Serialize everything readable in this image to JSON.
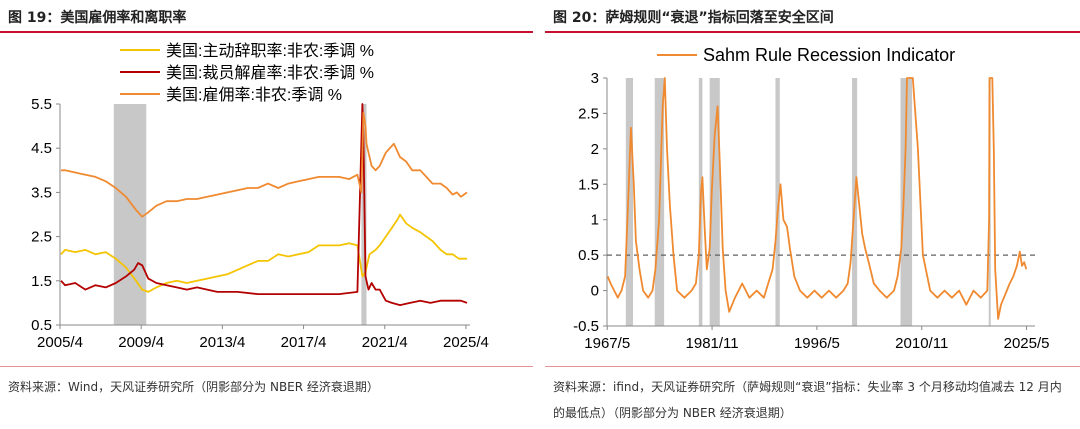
{
  "left": {
    "title": "图 19：美国雇佣率和离职率",
    "source": "资料来源：Wind，天风证券研究所（阴影部分为 NBER 经济衰退期）"
  },
  "right": {
    "title": "图 20：萨姆规则“衰退”指标回落至安全区间",
    "source": "资料来源：ifind，天风证券研究所（萨姆规则“衰退”指标：失业率 3 个月移动均值减去 12 月内的最低点）（阴影部分为 NBER 经济衰退期）"
  },
  "chart_data": [
    {
      "type": "line",
      "ylim": [
        0.5,
        5.5
      ],
      "yticks": [
        "5.5",
        "4.5",
        "3.5",
        "2.5",
        "1.5",
        "0.5"
      ],
      "xticks": [
        "2005/4",
        "2009/4",
        "2013/4",
        "2017/4",
        "2021/4",
        "2025/4"
      ],
      "legend_position": "top",
      "shading": [
        [
          2007.9,
          2009.5
        ],
        [
          2020.1,
          2020.35
        ]
      ],
      "series": [
        {
          "name": "美国:主动辞职率:非农:季调 %",
          "color": "#f5c400",
          "x": [
            2005.3,
            2005.5,
            2006.0,
            2006.5,
            2007.0,
            2007.5,
            2008.0,
            2008.5,
            2009.0,
            2009.3,
            2009.6,
            2010.0,
            2010.5,
            2011.0,
            2011.5,
            2012.0,
            2012.5,
            2013.0,
            2013.5,
            2014.0,
            2014.5,
            2015.0,
            2015.5,
            2016.0,
            2016.5,
            2017.0,
            2017.5,
            2018.0,
            2018.5,
            2019.0,
            2019.5,
            2019.9,
            2020.15,
            2020.3,
            2020.5,
            2020.8,
            2021.0,
            2021.3,
            2021.6,
            2021.9,
            2022.0,
            2022.3,
            2022.6,
            2023.0,
            2023.3,
            2023.6,
            2024.0,
            2024.3,
            2024.6,
            2024.9,
            2025.1,
            2025.3
          ],
          "y": [
            2.1,
            2.2,
            2.15,
            2.2,
            2.1,
            2.15,
            2.0,
            1.8,
            1.5,
            1.3,
            1.25,
            1.35,
            1.45,
            1.5,
            1.45,
            1.5,
            1.55,
            1.6,
            1.65,
            1.75,
            1.85,
            1.95,
            1.95,
            2.1,
            2.05,
            2.1,
            2.15,
            2.3,
            2.3,
            2.3,
            2.35,
            2.3,
            1.6,
            1.7,
            2.1,
            2.2,
            2.3,
            2.5,
            2.7,
            2.9,
            3.0,
            2.8,
            2.7,
            2.6,
            2.5,
            2.4,
            2.2,
            2.1,
            2.1,
            2.0,
            2.0,
            2.0
          ]
        },
        {
          "name": "美国:裁员解雇率:非农:季调 %",
          "color": "#b40000",
          "x": [
            2005.3,
            2005.5,
            2006.0,
            2006.5,
            2007.0,
            2007.5,
            2008.0,
            2008.5,
            2008.9,
            2009.1,
            2009.3,
            2009.6,
            2010.0,
            2010.5,
            2011.0,
            2011.5,
            2012.0,
            2013.0,
            2014.0,
            2015.0,
            2016.0,
            2017.0,
            2018.0,
            2019.0,
            2019.9,
            2020.15,
            2020.2,
            2020.3,
            2020.45,
            2020.6,
            2020.8,
            2021.0,
            2021.3,
            2021.6,
            2022.0,
            2022.5,
            2023.0,
            2023.5,
            2024.0,
            2024.5,
            2025.0,
            2025.3
          ],
          "y": [
            1.5,
            1.4,
            1.45,
            1.3,
            1.4,
            1.35,
            1.45,
            1.6,
            1.75,
            1.9,
            1.85,
            1.55,
            1.45,
            1.4,
            1.35,
            1.3,
            1.35,
            1.25,
            1.25,
            1.2,
            1.2,
            1.2,
            1.2,
            1.2,
            1.25,
            5.5,
            4.8,
            1.6,
            1.3,
            1.45,
            1.3,
            1.3,
            1.05,
            1.0,
            0.95,
            1.0,
            1.05,
            1.0,
            1.05,
            1.05,
            1.05,
            1.0
          ]
        },
        {
          "name": "美国:雇佣率:非农:季调 %",
          "color": "#f08a30",
          "x": [
            2005.3,
            2005.5,
            2006.0,
            2006.5,
            2007.0,
            2007.5,
            2008.0,
            2008.5,
            2009.0,
            2009.3,
            2009.6,
            2010.0,
            2010.5,
            2011.0,
            2011.5,
            2012.0,
            2012.5,
            2013.0,
            2013.5,
            2014.0,
            2014.5,
            2015.0,
            2015.5,
            2016.0,
            2016.5,
            2017.0,
            2017.5,
            2018.0,
            2018.5,
            2019.0,
            2019.5,
            2019.9,
            2020.1,
            2020.2,
            2020.3,
            2020.35,
            2020.45,
            2020.6,
            2020.8,
            2021.0,
            2021.3,
            2021.5,
            2021.7,
            2022.0,
            2022.3,
            2022.6,
            2023.0,
            2023.3,
            2023.6,
            2024.0,
            2024.3,
            2024.6,
            2024.8,
            2025.0,
            2025.3
          ],
          "y": [
            4.0,
            4.0,
            3.95,
            3.9,
            3.85,
            3.75,
            3.6,
            3.4,
            3.1,
            2.95,
            3.05,
            3.2,
            3.3,
            3.3,
            3.35,
            3.35,
            3.4,
            3.45,
            3.5,
            3.55,
            3.6,
            3.6,
            3.7,
            3.6,
            3.7,
            3.75,
            3.8,
            3.85,
            3.85,
            3.85,
            3.8,
            3.9,
            3.5,
            5.3,
            5.0,
            4.6,
            4.4,
            4.1,
            4.0,
            4.1,
            4.4,
            4.5,
            4.6,
            4.3,
            4.2,
            4.0,
            4.0,
            3.85,
            3.7,
            3.7,
            3.6,
            3.45,
            3.5,
            3.4,
            3.5
          ]
        }
      ]
    },
    {
      "type": "line",
      "ylim": [
        -0.5,
        3
      ],
      "yticks": [
        "3",
        "2.5",
        "2",
        "1.5",
        "1",
        "0.5",
        "0",
        "-0.5"
      ],
      "xticks": [
        "1967/5",
        "1981/11",
        "1996/5",
        "2010/11",
        "2025/5"
      ],
      "legend_position": "top",
      "threshold": 0.5,
      "shading": [
        [
          1969.9,
          1970.9
        ],
        [
          1973.9,
          1975.2
        ],
        [
          1980.0,
          1980.5
        ],
        [
          1981.5,
          1982.9
        ],
        [
          1990.6,
          1991.2
        ],
        [
          2001.2,
          2001.9
        ],
        [
          2007.9,
          2009.5
        ],
        [
          2020.1,
          2020.35
        ]
      ],
      "series": [
        {
          "name": "Sahm Rule Recession Indicator",
          "color": "#f08a30",
          "x": [
            1967.4,
            1967.8,
            1968.3,
            1968.8,
            1969.3,
            1969.8,
            1970.2,
            1970.6,
            1971.0,
            1971.3,
            1971.8,
            1972.3,
            1973.0,
            1973.6,
            1974.0,
            1974.5,
            1975.0,
            1975.3,
            1975.6,
            1976.0,
            1976.5,
            1977.0,
            1978.0,
            1979.0,
            1979.6,
            1980.0,
            1980.3,
            1980.5,
            1980.8,
            1981.1,
            1981.5,
            1981.8,
            1982.2,
            1982.6,
            1982.9,
            1983.3,
            1983.7,
            1984.2,
            1985.0,
            1986.0,
            1987.0,
            1988.0,
            1989.0,
            1989.6,
            1990.2,
            1990.6,
            1990.9,
            1991.3,
            1991.7,
            1992.2,
            1992.6,
            1993.2,
            1994.0,
            1995.0,
            1996.0,
            1997.0,
            1998.0,
            1999.0,
            2000.0,
            2000.6,
            2001.0,
            2001.4,
            2001.8,
            2002.2,
            2002.6,
            2003.0,
            2003.5,
            2004.2,
            2005.0,
            2006.0,
            2007.0,
            2007.5,
            2008.0,
            2008.3,
            2008.6,
            2008.8,
            2009.0,
            2009.3,
            2009.6,
            2010.3,
            2011.0,
            2012.0,
            2013.0,
            2014.0,
            2015.0,
            2016.0,
            2017.0,
            2018.0,
            2019.0,
            2019.9,
            2020.15,
            2020.2,
            2020.4,
            2020.6,
            2020.8,
            2021.0,
            2021.4,
            2021.8,
            2022.2,
            2022.6,
            2023.0,
            2023.5,
            2024.0,
            2024.4,
            2024.7,
            2025.0,
            2025.3
          ],
          "y": [
            0.2,
            0.1,
            0.0,
            -0.1,
            0.0,
            0.2,
            1.2,
            2.3,
            1.5,
            0.7,
            0.3,
            0.0,
            -0.1,
            0.0,
            0.3,
            1.0,
            2.6,
            3.0,
            2.0,
            1.2,
            0.5,
            0.0,
            -0.1,
            0.0,
            0.1,
            0.5,
            1.4,
            1.6,
            0.9,
            0.3,
            0.6,
            1.4,
            2.2,
            2.6,
            1.8,
            0.6,
            0.0,
            -0.3,
            -0.1,
            0.1,
            -0.1,
            0.0,
            -0.1,
            0.1,
            0.3,
            0.7,
            1.1,
            1.5,
            1.0,
            0.9,
            0.6,
            0.2,
            0.0,
            -0.1,
            0.0,
            -0.1,
            0.0,
            -0.1,
            0.0,
            0.1,
            0.4,
            1.0,
            1.6,
            1.2,
            0.8,
            0.6,
            0.4,
            0.1,
            0.0,
            -0.1,
            0.0,
            0.2,
            0.6,
            1.2,
            2.0,
            3.0,
            3.0,
            3.0,
            3.0,
            2.0,
            0.5,
            0.0,
            -0.1,
            0.0,
            -0.1,
            0.0,
            -0.2,
            0.0,
            -0.1,
            0.0,
            1.0,
            3.0,
            3.0,
            3.0,
            2.0,
            0.3,
            -0.4,
            -0.2,
            -0.1,
            0.0,
            0.1,
            0.2,
            0.35,
            0.55,
            0.35,
            0.4,
            0.3
          ]
        },
        {
          "name": "",
          "color": "#606060",
          "style": "dashed",
          "x": [
            1967.4,
            2025.4
          ],
          "y": [
            0.5,
            0.5
          ]
        }
      ]
    }
  ]
}
